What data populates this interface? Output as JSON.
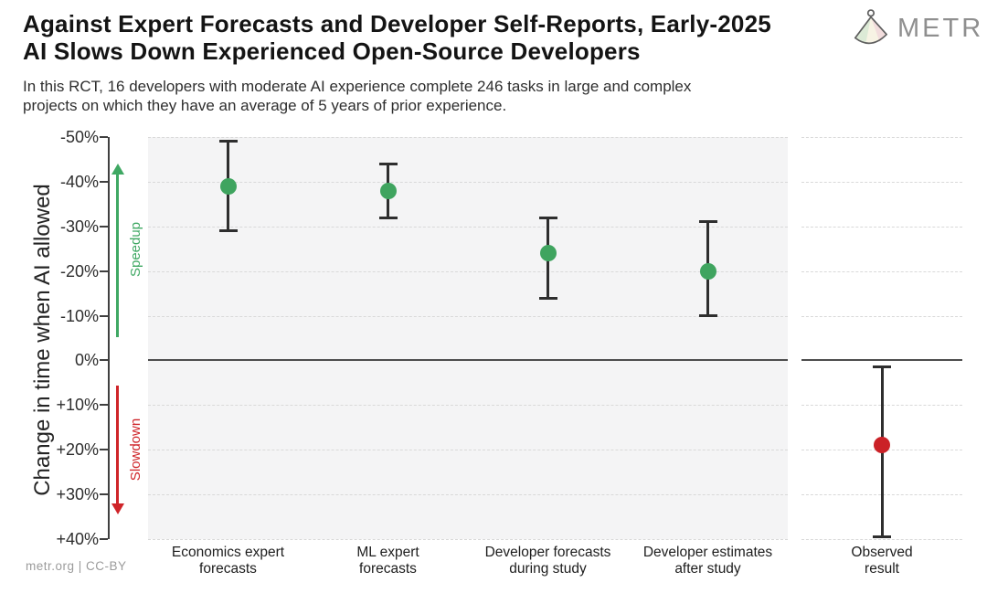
{
  "logo": {
    "text": "METR",
    "icon": "metr-fan-icon"
  },
  "footer": {
    "credit": "metr.org | CC-BY"
  },
  "chart_data": {
    "type": "scatter",
    "title_line1": "Against Expert Forecasts and Developer Self-Reports, Early-2025",
    "title_line2": "AI Slows Down Experienced Open-Source Developers",
    "subtitle_line1": "In this RCT, 16 developers with moderate AI experience complete 246 tasks in large and complex",
    "subtitle_line2": "projects on which they have an average of 5 years of prior experience.",
    "ylabel": "Change in time when AI allowed",
    "speedup_label": "Speedup",
    "slowdown_label": "Slowdown",
    "ylim": [
      -50,
      40
    ],
    "grid": "horizontal-dashed",
    "zero_line": true,
    "yticks": [
      {
        "v": -50,
        "label": "-50%"
      },
      {
        "v": -40,
        "label": "-40%"
      },
      {
        "v": -30,
        "label": "-30%"
      },
      {
        "v": -20,
        "label": "-20%"
      },
      {
        "v": -10,
        "label": "-10%"
      },
      {
        "v": 0,
        "label": "0%"
      },
      {
        "v": 10,
        "label": "+10%"
      },
      {
        "v": 20,
        "label": "+20%"
      },
      {
        "v": 30,
        "label": "+30%"
      },
      {
        "v": 40,
        "label": "+40%"
      }
    ],
    "points": [
      {
        "label_line1": "Economics expert",
        "label_line2": "forecasts",
        "value": -39,
        "ci_low": -49,
        "ci_high": -29,
        "color_key": "forecast",
        "panel": "main"
      },
      {
        "label_line1": "ML expert",
        "label_line2": "forecasts",
        "value": -38,
        "ci_low": -44,
        "ci_high": -32,
        "color_key": "forecast",
        "panel": "main"
      },
      {
        "label_line1": "Developer forecasts",
        "label_line2": "during study",
        "value": -24,
        "ci_low": -32,
        "ci_high": -14,
        "color_key": "forecast",
        "panel": "main"
      },
      {
        "label_line1": "Developer estimates",
        "label_line2": "after study",
        "value": -20,
        "ci_low": -31,
        "ci_high": -10,
        "color_key": "forecast",
        "panel": "main"
      },
      {
        "label_line1": "Observed",
        "label_line2": "result",
        "value": 19,
        "ci_low": 1.5,
        "ci_high": 39.5,
        "color_key": "observed",
        "panel": "observed"
      }
    ],
    "colors": {
      "forecast": "#3fa45f",
      "observed": "#cb2127",
      "speedup_accent": "#3fa863",
      "slowdown_accent": "#cf2429",
      "errorbar": "#2e2e2e",
      "main_panel_bg": "#f4f4f5",
      "observed_panel_bg": "#ffffff"
    }
  }
}
